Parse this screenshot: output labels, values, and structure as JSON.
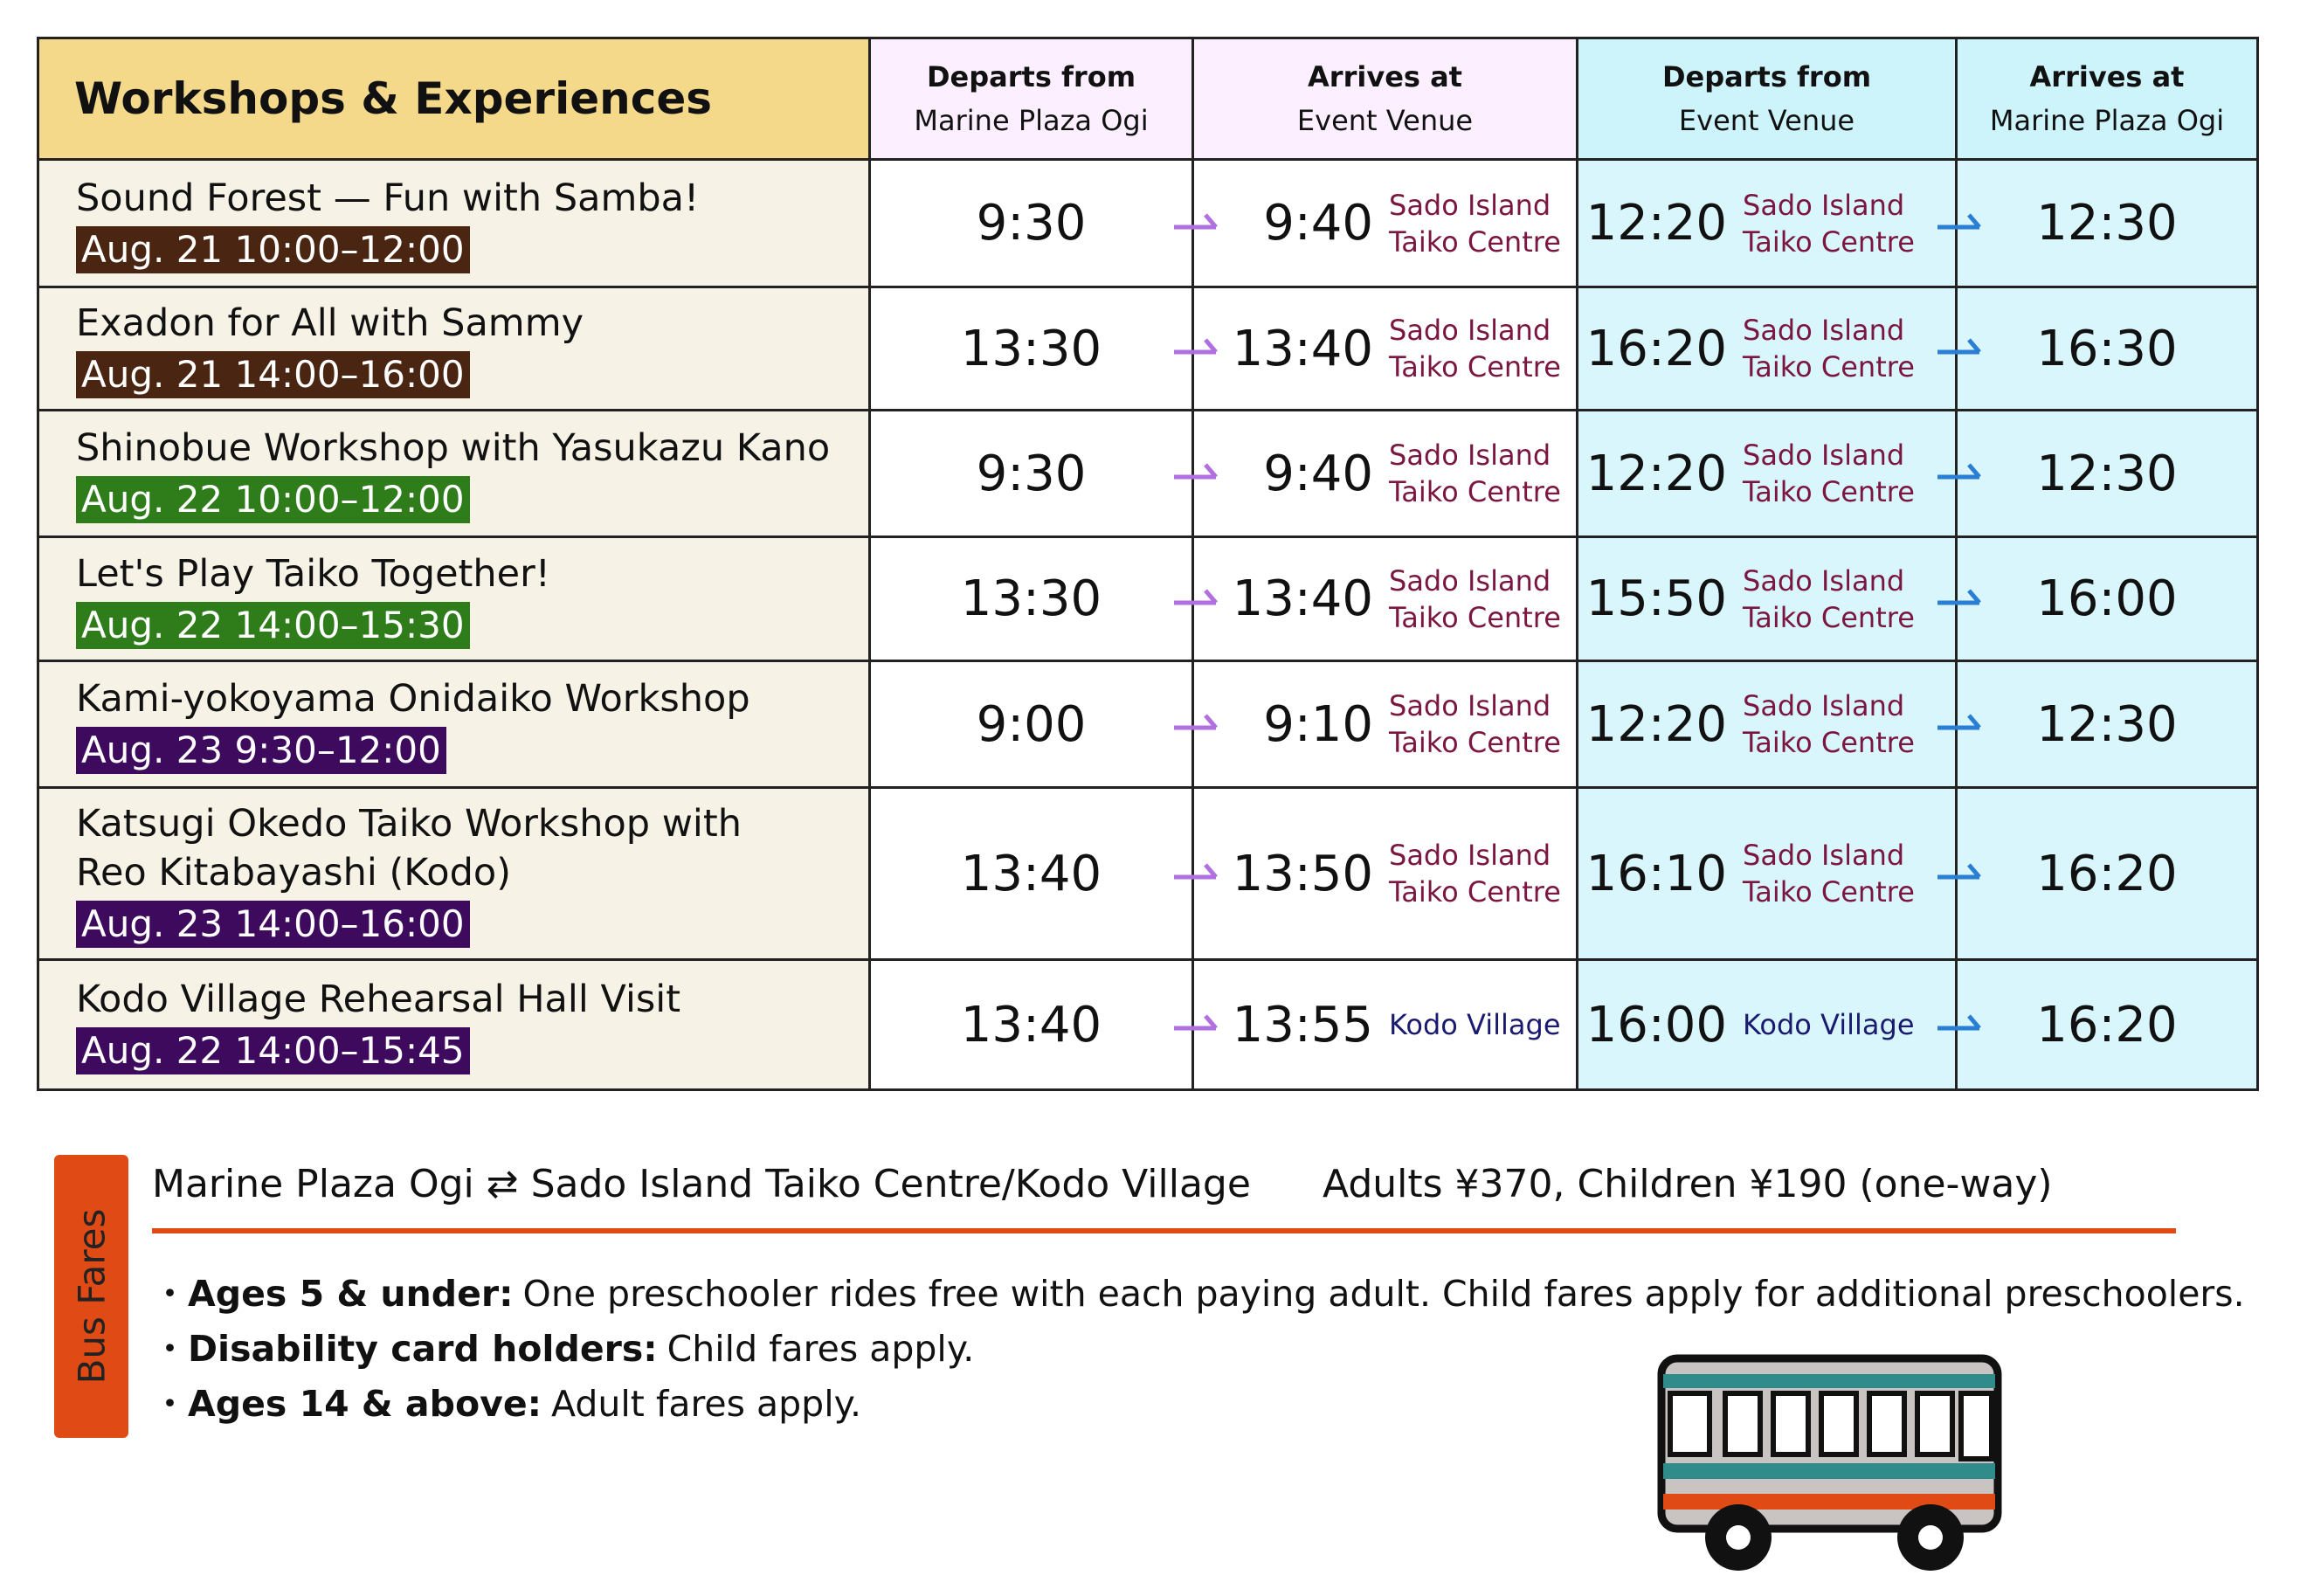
{
  "header": {
    "title": "Workshops & Experiences",
    "columns": [
      {
        "bold": "Departs from",
        "sub": "Marine Plaza Ogi"
      },
      {
        "bold": "Arrives at",
        "sub": "Event Venue"
      },
      {
        "bold": "Departs from",
        "sub": "Event Venue"
      },
      {
        "bold": "Arrives at",
        "sub": "Marine Plaza Ogi"
      }
    ]
  },
  "rows": [
    {
      "name": "Sound Forest — Fun with Samba!",
      "date": "Aug. 21 10:00–12:00",
      "dep": "9:30",
      "arr": "9:40",
      "venue": "Sado Island\nTaiko Centre",
      "ret_dep": "12:20",
      "ret_venue": "Sado Island\nTaiko Centre",
      "ret_arr": "12:30"
    },
    {
      "name": "Exadon for All with Sammy",
      "date": "Aug. 21 14:00–16:00",
      "dep": "13:30",
      "arr": "13:40",
      "venue": "Sado Island\nTaiko Centre",
      "ret_dep": "16:20",
      "ret_venue": "Sado Island\nTaiko Centre",
      "ret_arr": "16:30"
    },
    {
      "name": "Shinobue Workshop with Yasukazu Kano",
      "date": "Aug. 22 10:00–12:00",
      "dep": "9:30",
      "arr": "9:40",
      "venue": "Sado Island\nTaiko Centre",
      "ret_dep": "12:20",
      "ret_venue": "Sado Island\nTaiko Centre",
      "ret_arr": "12:30"
    },
    {
      "name": "Let's Play Taiko Together!",
      "date": "Aug. 22 14:00–15:30",
      "dep": "13:30",
      "arr": "13:40",
      "venue": "Sado Island\nTaiko Centre",
      "ret_dep": "15:50",
      "ret_venue": "Sado Island\nTaiko Centre",
      "ret_arr": "16:00"
    },
    {
      "name": "Kami-yokoyama Onidaiko Workshop",
      "date": "Aug. 23 9:30–12:00",
      "dep": "9:00",
      "arr": "9:10",
      "venue": "Sado Island\nTaiko Centre",
      "ret_dep": "12:20",
      "ret_venue": "Sado Island\nTaiko Centre",
      "ret_arr": "12:30"
    },
    {
      "name": "Katsugi Okedo Taiko Workshop with\nReo Kitabayashi (Kodo)",
      "date": "Aug. 23 14:00–16:00",
      "dep": "13:40",
      "arr": "13:50",
      "venue": "Sado Island\nTaiko Centre",
      "ret_dep": "16:10",
      "ret_venue": "Sado Island\nTaiko Centre",
      "ret_arr": "16:20"
    },
    {
      "name": "Kodo Village Rehearsal Hall Visit",
      "date": "Aug. 22 14:00–15:45",
      "dep": "13:40",
      "arr": "13:55",
      "venue": "Kodo Village",
      "ret_dep": "16:00",
      "ret_venue": "Kodo Village",
      "ret_arr": "16:20"
    }
  ],
  "fares": {
    "label": "Bus Fares",
    "route": "Marine Plaza Ogi ⇄ Sado Island Taiko Centre/Kodo Village",
    "price": "Adults ¥370,  Children ¥190 (one-way)",
    "bullet": "・",
    "notes": [
      {
        "label": "Ages 5 & under:",
        "text": "One preschooler rides free with each paying adult. Child fares apply for additional preschoolers."
      },
      {
        "label": "Disability card holders:",
        "text": "Child fares apply."
      },
      {
        "label": "Ages 14 & above:",
        "text": "Adult fares apply."
      }
    ]
  }
}
